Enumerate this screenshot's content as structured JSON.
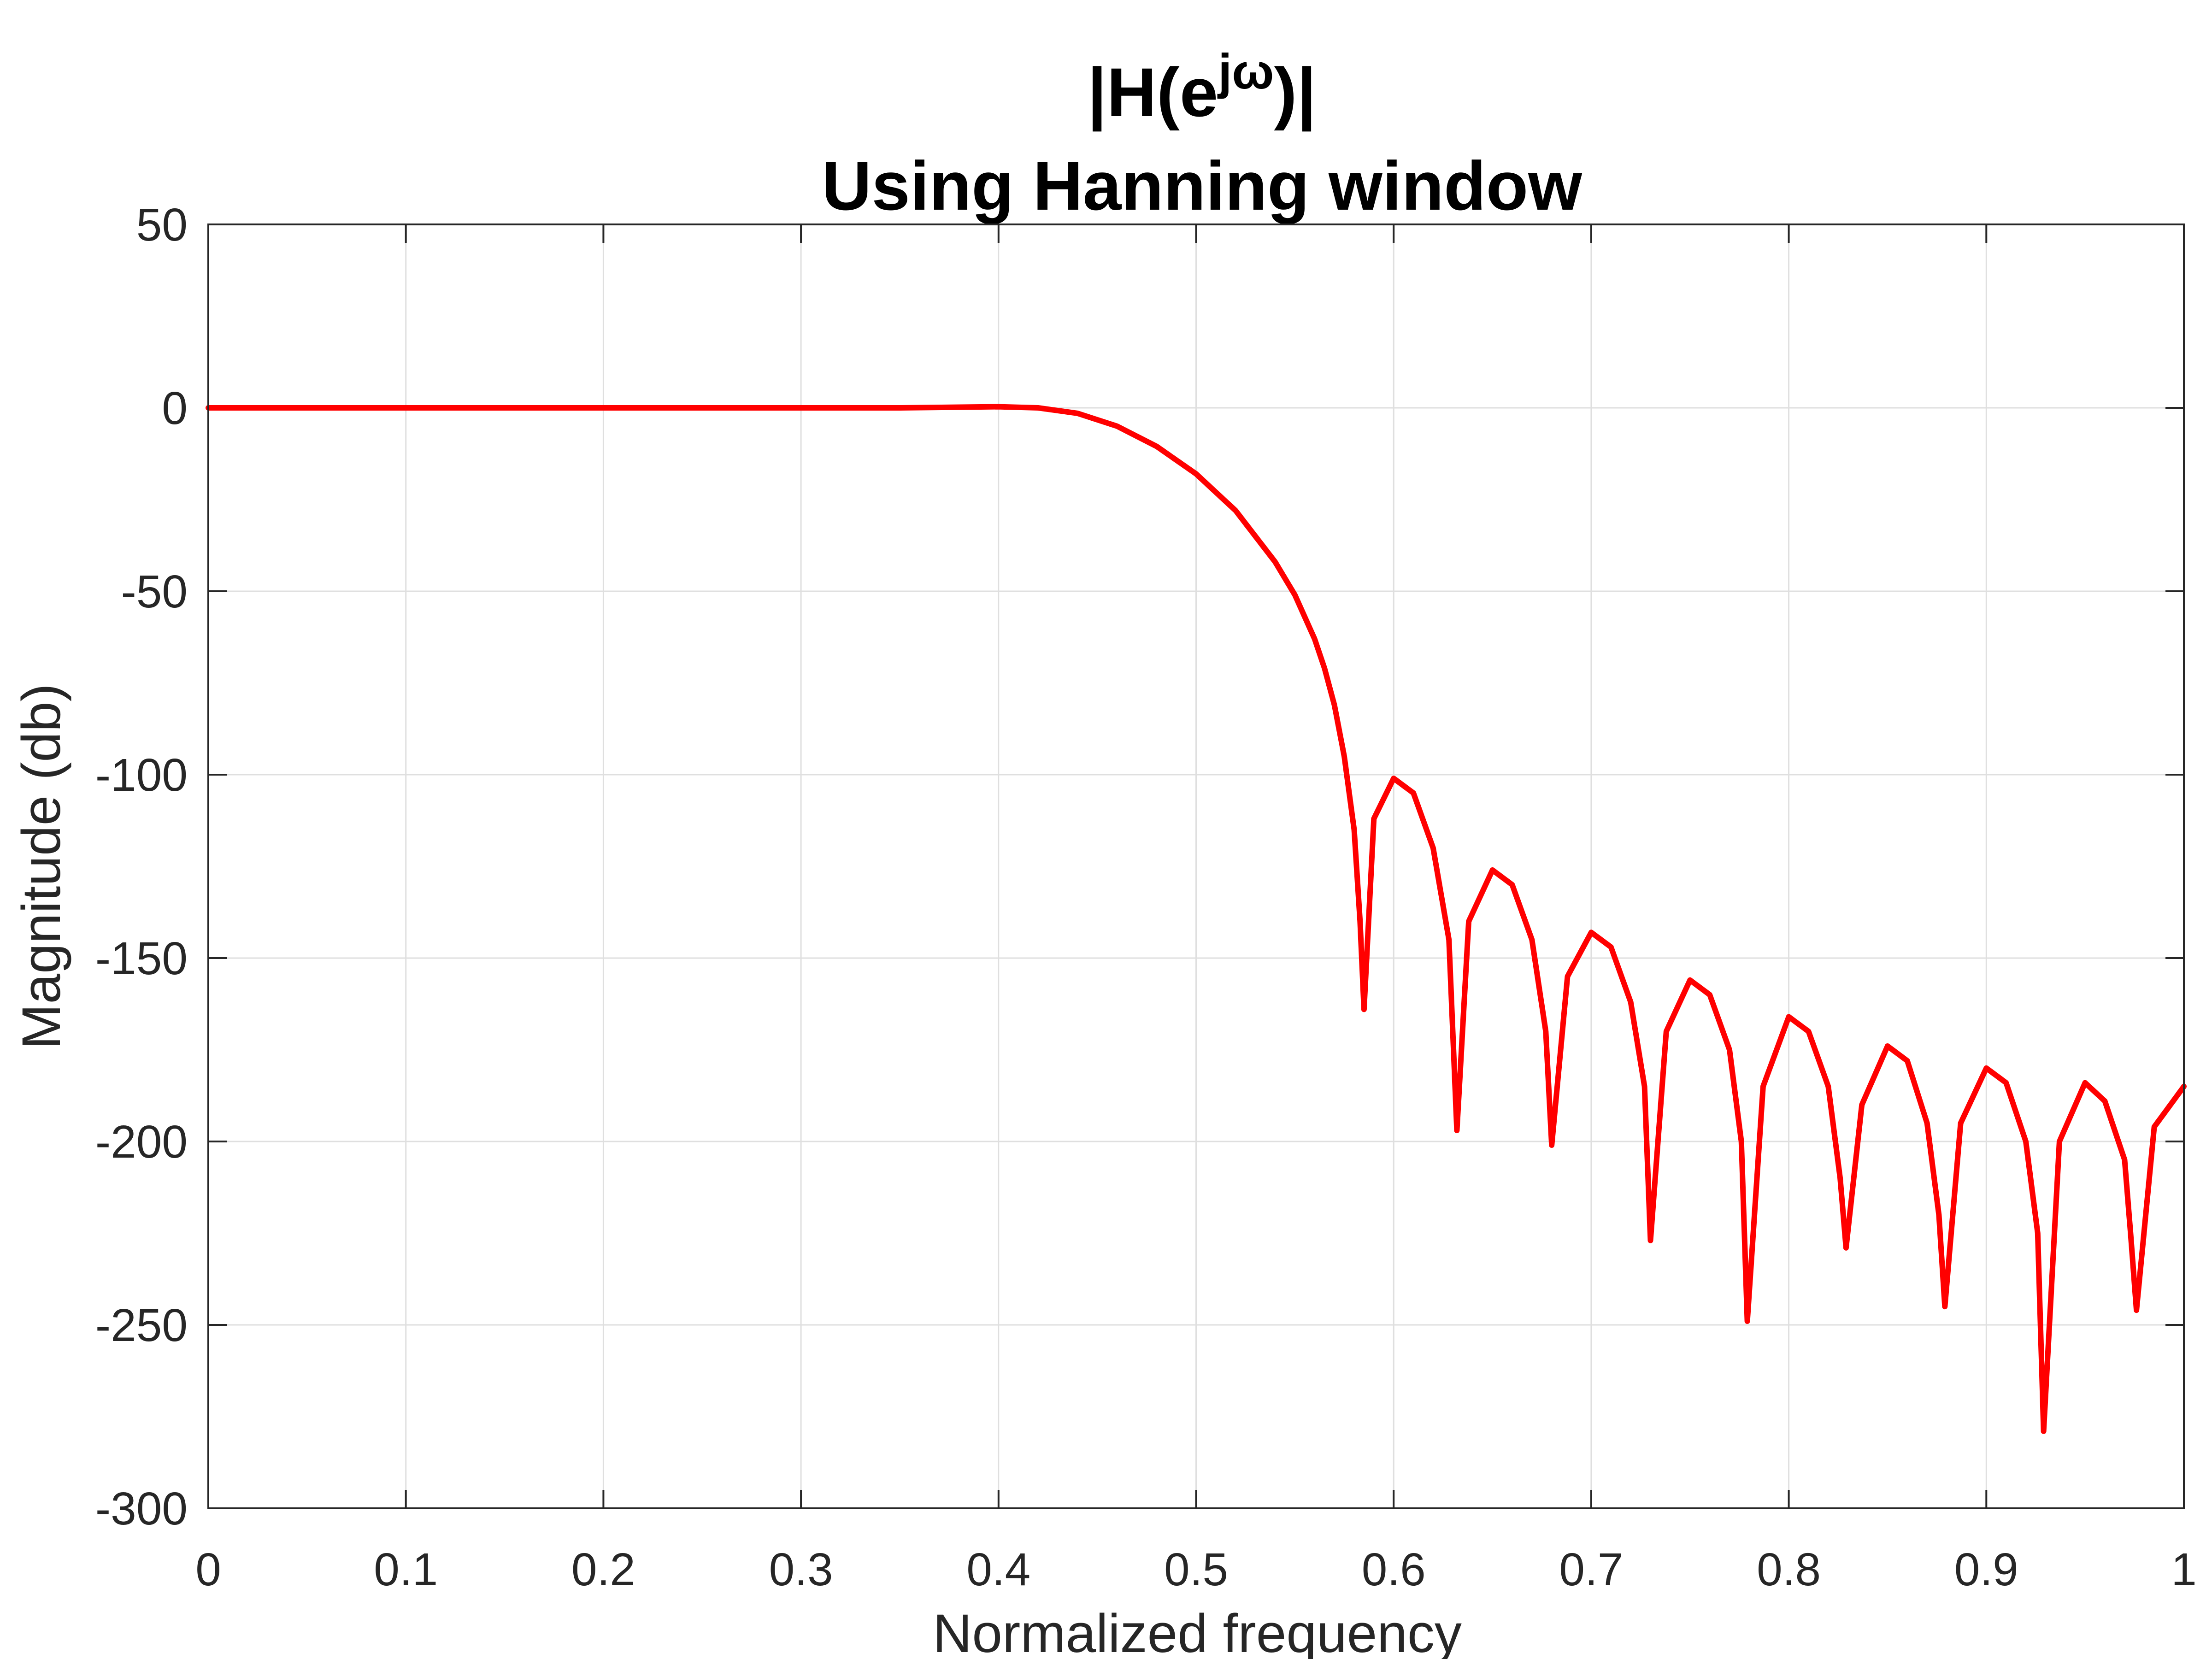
{
  "chart_data": {
    "type": "line",
    "title_line1_main": "|H(e",
    "title_line1_sup": "jω",
    "title_line1_end": ")|",
    "title_line2": "Using Hanning window",
    "xlabel": "Normalized frequency",
    "ylabel": "Magnitude (db)",
    "xlim": [
      0,
      1
    ],
    "ylim": [
      -300,
      50
    ],
    "xticks": [
      0,
      0.1,
      0.2,
      0.3,
      0.4,
      0.5,
      0.6,
      0.7,
      0.8,
      0.9,
      1
    ],
    "xtick_labels": [
      "0",
      "0.1",
      "0.2",
      "0.3",
      "0.4",
      "0.5",
      "0.6",
      "0.7",
      "0.8",
      "0.9",
      "1"
    ],
    "yticks": [
      50,
      0,
      -50,
      -100,
      -150,
      -200,
      -250,
      -300
    ],
    "ytick_labels": [
      "50",
      "0",
      "-50",
      "-100",
      "-150",
      "-200",
      "-250",
      "-300"
    ],
    "grid": true,
    "line_color": "#ff0000",
    "series": [
      {
        "x": [
          0,
          0.05,
          0.1,
          0.15,
          0.2,
          0.25,
          0.3,
          0.35,
          0.4,
          0.42,
          0.44,
          0.46,
          0.48,
          0.5,
          0.52,
          0.54,
          0.55,
          0.56,
          0.565,
          0.57,
          0.575,
          0.58,
          0.583,
          0.585,
          0.59,
          0.6,
          0.61,
          0.62,
          0.628,
          0.632,
          0.638,
          0.65,
          0.66,
          0.67,
          0.677,
          0.68,
          0.688,
          0.7,
          0.71,
          0.72,
          0.727,
          0.73,
          0.738,
          0.75,
          0.76,
          0.77,
          0.776,
          0.779,
          0.787,
          0.8,
          0.81,
          0.82,
          0.826,
          0.829,
          0.837,
          0.85,
          0.86,
          0.87,
          0.876,
          0.879,
          0.887,
          0.9,
          0.91,
          0.92,
          0.926,
          0.929,
          0.937,
          0.95,
          0.96,
          0.97,
          0.973,
          0.976,
          0.985,
          1.0
        ],
        "y": [
          0,
          0,
          0,
          0,
          0,
          0,
          0,
          0,
          0.3,
          0,
          -1.5,
          -5,
          -10.5,
          -18,
          -28,
          -42,
          -51,
          -63,
          -71,
          -81,
          -95,
          -115,
          -140,
          -164,
          -112,
          -101,
          -105,
          -120,
          -145,
          -197,
          -140,
          -126,
          -130,
          -145,
          -170,
          -201,
          -155,
          -143,
          -147,
          -162,
          -185,
          -227,
          -170,
          -156,
          -160,
          -175,
          -200,
          -249,
          -185,
          -166,
          -170,
          -185,
          -210,
          -229,
          -190,
          -174,
          -178,
          -195,
          -220,
          -245,
          -195,
          -180,
          -184,
          -200,
          -225,
          -279,
          -200,
          -184,
          -189,
          -205,
          -225,
          -246,
          -196,
          -185
        ]
      }
    ]
  }
}
